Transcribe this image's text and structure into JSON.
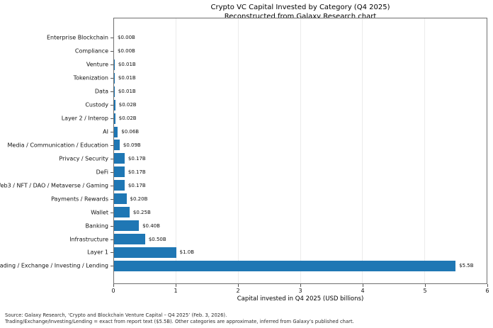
{
  "title": {
    "line1": "Crypto VC Capital Invested by Category (Q4 2025)",
    "line2": "Reconstructed from Galaxy Research chart"
  },
  "chart_data": {
    "type": "bar",
    "orientation": "horizontal",
    "title": "Crypto VC Capital Invested by Category (Q4 2025)",
    "subtitle": "Reconstructed from Galaxy Research chart",
    "categories": [
      "Enterprise Blockchain",
      "Compliance",
      "Venture",
      "Tokenization",
      "Data",
      "Custody",
      "Layer 2 / Interop",
      "AI",
      "Media / Communication / Education",
      "Privacy / Security",
      "DeFi",
      "Web3 / NFT / DAO / Metaverse / Gaming",
      "Payments / Rewards",
      "Wallet",
      "Banking",
      "Infrastructure",
      "Layer 1",
      "Trading / Exchange / Investing / Lending"
    ],
    "values": [
      0.0,
      0.0,
      0.01,
      0.01,
      0.01,
      0.02,
      0.02,
      0.06,
      0.09,
      0.17,
      0.17,
      0.17,
      0.2,
      0.25,
      0.4,
      0.5,
      1.0,
      5.5
    ],
    "value_labels": [
      "$0.00B",
      "$0.00B",
      "$0.01B",
      "$0.01B",
      "$0.01B",
      "$0.02B",
      "$0.02B",
      "$0.06B",
      "$0.09B",
      "$0.17B",
      "$0.17B",
      "$0.17B",
      "$0.20B",
      "$0.25B",
      "$0.40B",
      "$0.50B",
      "$1.0B",
      "$5.5B"
    ],
    "xlabel": "Capital invested in Q4 2025 (USD billions)",
    "ylabel": "",
    "xlim": [
      0,
      6
    ],
    "xticks": [
      "0",
      "1",
      "2",
      "3",
      "4",
      "5",
      "6"
    ],
    "grid": "vertical-light",
    "legend": "none",
    "bar_color": "#1f77b4"
  },
  "footnote": {
    "line1": "Source: Galaxy Research, ‘Crypto and Blockchain Venture Capital – Q4 2025’ (Feb. 3, 2026).",
    "line2": "Trading/Exchange/Investing/Lending = exact from report text ($5.5B). Other categories are approximate, inferred from Galaxy’s published chart."
  },
  "colors": {
    "bar": "#1f77b4",
    "grid": "#ebebeb",
    "spine": "#707070",
    "text": "#000000",
    "footnote": "#2b2b2b",
    "background": "#ffffff"
  }
}
